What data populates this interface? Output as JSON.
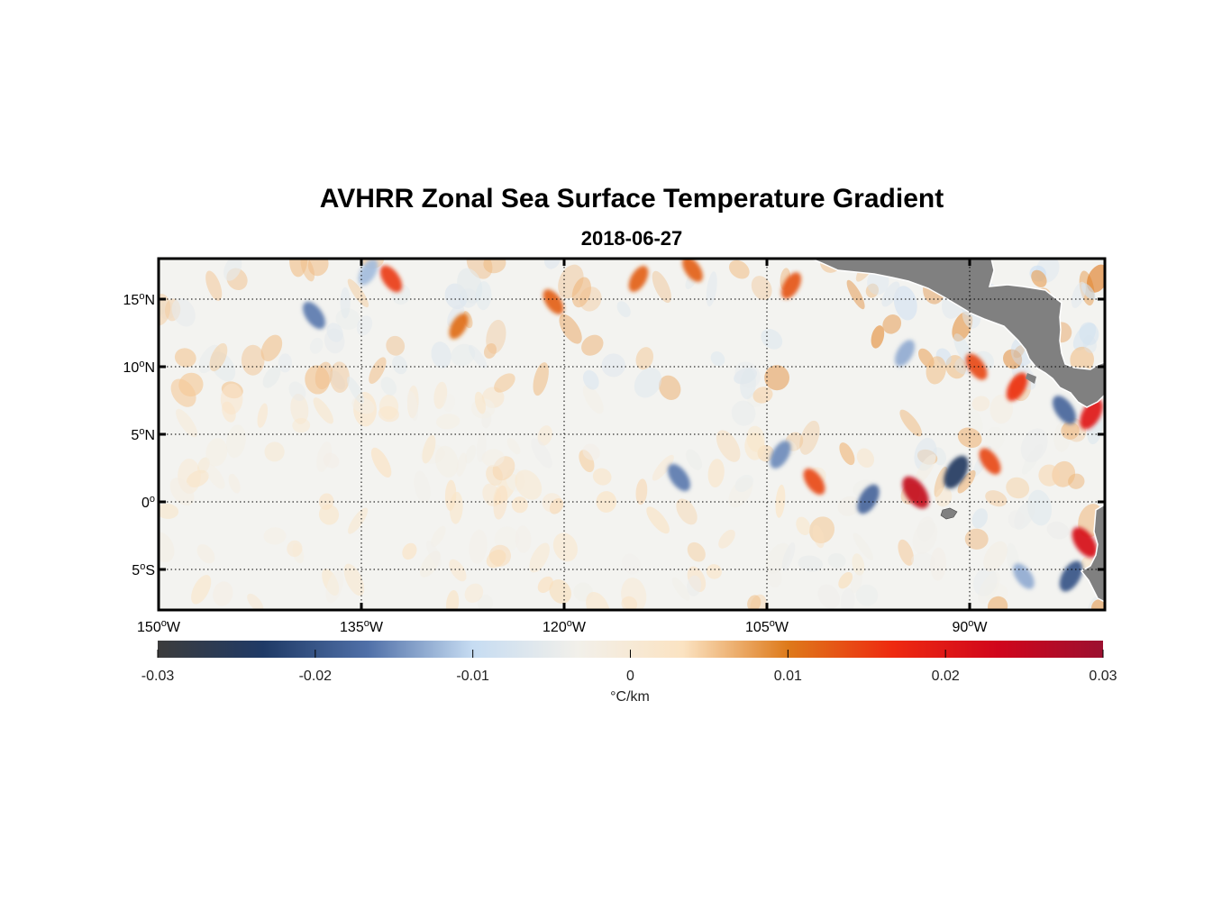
{
  "title": "AVHRR Zonal Sea Surface Temperature Gradient",
  "subtitle": "2018-06-27",
  "map": {
    "lon_range": [
      -150,
      -80
    ],
    "lat_range": [
      -8,
      18
    ],
    "lon_ticks": [
      {
        "value": -150,
        "deg": "150",
        "hemi": "W"
      },
      {
        "value": -135,
        "deg": "135",
        "hemi": "W"
      },
      {
        "value": -120,
        "deg": "120",
        "hemi": "W"
      },
      {
        "value": -105,
        "deg": "105",
        "hemi": "W"
      },
      {
        "value": -90,
        "deg": "90",
        "hemi": "W"
      }
    ],
    "lat_ticks": [
      {
        "value": 15,
        "deg": "15",
        "hemi": "N"
      },
      {
        "value": 10,
        "deg": "10",
        "hemi": "N"
      },
      {
        "value": 5,
        "deg": "5",
        "hemi": "N"
      },
      {
        "value": 0,
        "deg": "0",
        "hemi": ""
      },
      {
        "value": -5,
        "deg": "5",
        "hemi": "S"
      }
    ],
    "land_color": "#808080",
    "grid": "dotted"
  },
  "colorbar": {
    "range": [
      -0.03,
      0.03
    ],
    "ticks": [
      "-0.03",
      "-0.02",
      "-0.01",
      "0",
      "0.01",
      "0.02",
      "0.03"
    ],
    "units": "°C/km",
    "colors": [
      "#3c3c3c",
      "#1f3a66",
      "#5070a8",
      "#c6dcf2",
      "#f2f0ea",
      "#fbe3c2",
      "#de7a1a",
      "#ee2a10",
      "#d0061c",
      "#9c1030"
    ]
  },
  "chart_data": {
    "type": "heatmap",
    "title": "AVHRR Zonal Sea Surface Temperature Gradient",
    "subtitle": "2018-06-27",
    "xlim": [
      -150,
      -80
    ],
    "ylim": [
      -8,
      18
    ],
    "clim": [
      -0.03,
      0.03
    ],
    "colorbar_label": "°C/km",
    "features": [
      {
        "lon": -132.8,
        "lat": 16.5,
        "value": 0.015
      },
      {
        "lon": -134.5,
        "lat": 17.0,
        "value": -0.012
      },
      {
        "lon": -138.5,
        "lat": 13.8,
        "value": -0.016
      },
      {
        "lon": -127.8,
        "lat": 13.0,
        "value": 0.011
      },
      {
        "lon": -120.8,
        "lat": 14.8,
        "value": 0.012
      },
      {
        "lon": -114.5,
        "lat": 16.5,
        "value": 0.012
      },
      {
        "lon": -110.5,
        "lat": 17.2,
        "value": 0.012
      },
      {
        "lon": -103.2,
        "lat": 16.0,
        "value": 0.013
      },
      {
        "lon": -111.5,
        "lat": 1.8,
        "value": -0.016
      },
      {
        "lon": -104.0,
        "lat": 3.5,
        "value": -0.015
      },
      {
        "lon": -101.5,
        "lat": 1.5,
        "value": 0.014
      },
      {
        "lon": -97.5,
        "lat": 0.2,
        "value": -0.018
      },
      {
        "lon": -94.0,
        "lat": 0.7,
        "value": 0.025
      },
      {
        "lon": -91.0,
        "lat": 2.2,
        "value": -0.024
      },
      {
        "lon": -88.5,
        "lat": 3.0,
        "value": 0.014
      },
      {
        "lon": -94.8,
        "lat": 11.0,
        "value": -0.013
      },
      {
        "lon": -89.5,
        "lat": 10.0,
        "value": 0.014
      },
      {
        "lon": -86.5,
        "lat": 8.5,
        "value": 0.016
      },
      {
        "lon": -83.0,
        "lat": 6.8,
        "value": -0.018
      },
      {
        "lon": -81.0,
        "lat": 6.5,
        "value": 0.02
      },
      {
        "lon": -81.5,
        "lat": -3.0,
        "value": 0.022
      },
      {
        "lon": -82.5,
        "lat": -5.5,
        "value": -0.02
      },
      {
        "lon": -86.0,
        "lat": -5.5,
        "value": -0.013
      }
    ]
  }
}
